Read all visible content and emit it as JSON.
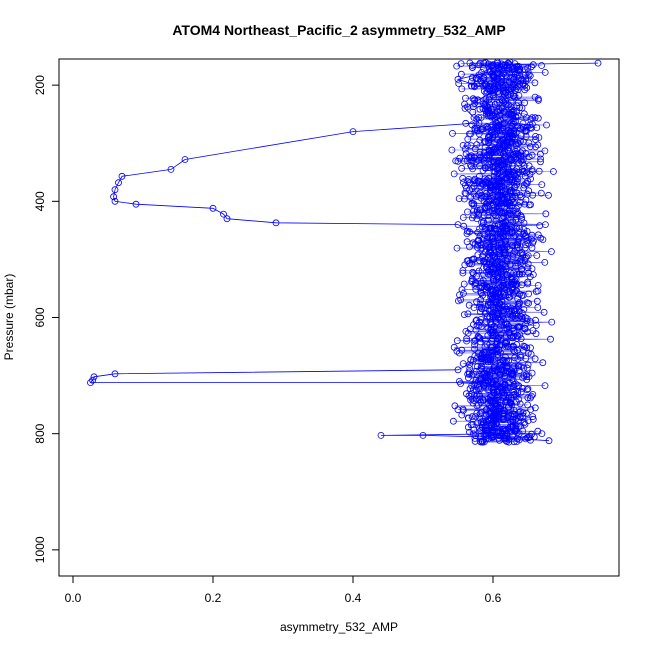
{
  "chart_data": {
    "type": "scatter",
    "title": "ATOM4 Northeast_Pacific_2 asymmetry_532_AMP",
    "xlabel": "asymmetry_532_AMP",
    "ylabel": "Pressure (mbar)",
    "xlim": [
      -0.02,
      0.78
    ],
    "ylim": [
      1045,
      155
    ],
    "y_reversed": true,
    "x_ticks": [
      0.0,
      0.2,
      0.4,
      0.6
    ],
    "x_tick_labels": [
      "0.0",
      "0.2",
      "0.4",
      "0.6"
    ],
    "y_ticks": [
      200,
      400,
      600,
      800,
      1000
    ],
    "y_tick_labels": [
      "200",
      "400",
      "600",
      "800",
      "1000"
    ],
    "marker": "open-circle",
    "connected": true,
    "color": "#0000ff",
    "grid": false,
    "series": [
      {
        "points": [
          [
            0.75,
            162
          ],
          [
            0.58,
            165
          ],
          [
            0.62,
            170
          ],
          [
            0.55,
            190
          ],
          [
            0.6,
            210
          ],
          [
            0.56,
            240
          ],
          [
            0.58,
            265
          ],
          [
            0.4,
            280
          ],
          [
            0.16,
            328
          ],
          [
            0.14,
            345
          ],
          [
            0.07,
            357
          ],
          [
            0.065,
            368
          ],
          [
            0.06,
            380
          ],
          [
            0.058,
            392
          ],
          [
            0.06,
            400
          ],
          [
            0.09,
            405
          ],
          [
            0.2,
            412
          ],
          [
            0.215,
            422
          ],
          [
            0.22,
            430
          ],
          [
            0.29,
            437
          ],
          [
            0.55,
            440
          ],
          [
            0.6,
            470
          ],
          [
            0.58,
            520
          ],
          [
            0.6,
            570
          ],
          [
            0.62,
            620
          ],
          [
            0.6,
            660
          ],
          [
            0.55,
            690
          ],
          [
            0.06,
            697
          ],
          [
            0.03,
            702
          ],
          [
            0.028,
            708
          ],
          [
            0.025,
            712
          ],
          [
            0.6,
            712
          ],
          [
            0.62,
            730
          ],
          [
            0.63,
            760
          ],
          [
            0.6,
            780
          ],
          [
            0.62,
            800
          ],
          [
            0.44,
            803
          ],
          [
            0.5,
            803
          ],
          [
            0.6,
            806
          ],
          [
            0.68,
            812
          ]
        ]
      }
    ],
    "scatter_cloud": {
      "x_range": [
        0.5,
        0.75
      ],
      "y_range": [
        160,
        815
      ],
      "center_x": 0.61,
      "count": 1800
    }
  }
}
